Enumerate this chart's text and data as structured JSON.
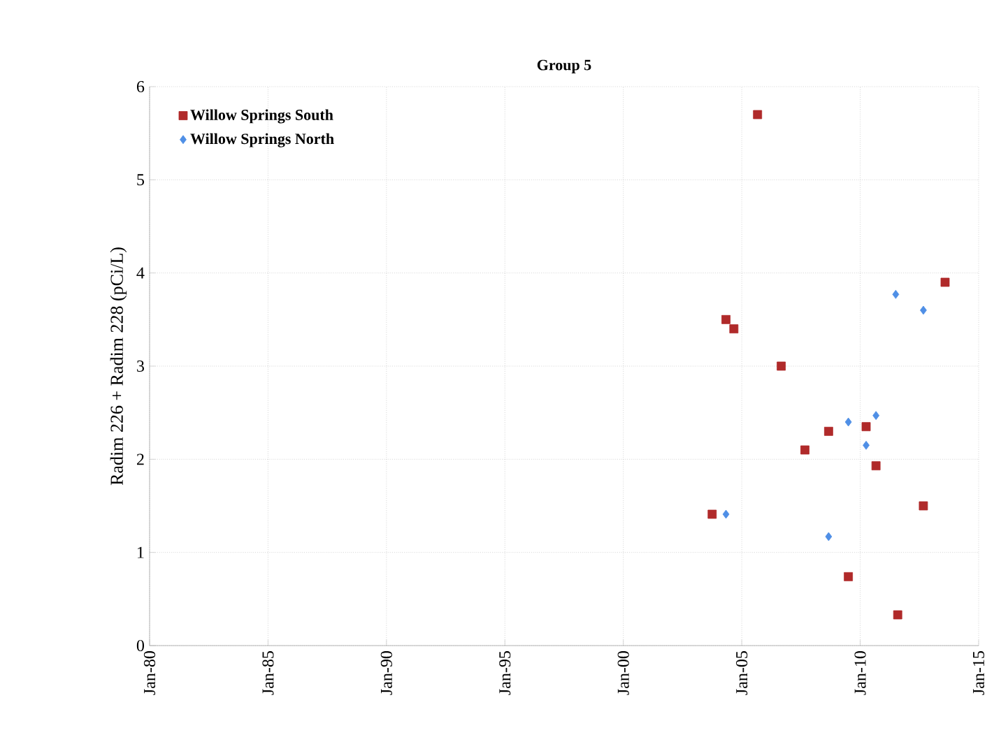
{
  "chart_data": {
    "type": "scatter",
    "title": "Group 5",
    "ylabel": "Radim 226 + Radim 228 (pCi/L)",
    "xlim": [
      "1980-01",
      "2015-01"
    ],
    "ylim": [
      0,
      6
    ],
    "xticks": [
      {
        "value": "1980-01",
        "label": "Jan-80"
      },
      {
        "value": "1985-01",
        "label": "Jan-85"
      },
      {
        "value": "1990-01",
        "label": "Jan-90"
      },
      {
        "value": "1995-01",
        "label": "Jan-95"
      },
      {
        "value": "2000-01",
        "label": "Jan-00"
      },
      {
        "value": "2005-01",
        "label": "Jan-05"
      },
      {
        "value": "2010-01",
        "label": "Jan-10"
      },
      {
        "value": "2015-01",
        "label": "Jan-15"
      }
    ],
    "yticks": [
      0,
      1,
      2,
      3,
      4,
      5,
      6
    ],
    "grid": true,
    "legend": "top left",
    "series": [
      {
        "name": "Willow Springs South",
        "color": "#b02a2a",
        "marker": "square",
        "x": [
          "2003-10",
          "2004-05",
          "2004-09",
          "2005-09",
          "2006-09",
          "2007-09",
          "2008-09",
          "2009-07",
          "2010-04",
          "2010-09",
          "2011-08",
          "2012-09",
          "2013-08"
        ],
        "values": [
          1.41,
          3.5,
          3.4,
          5.7,
          3.0,
          2.1,
          2.3,
          0.74,
          2.35,
          1.93,
          0.33,
          1.5,
          3.9
        ]
      },
      {
        "name": "Willow Springs North",
        "color": "#4f8fe6",
        "marker": "diamond",
        "x": [
          "2004-05",
          "2008-09",
          "2009-07",
          "2010-04",
          "2010-09",
          "2011-07",
          "2012-09"
        ],
        "values": [
          1.41,
          1.17,
          2.4,
          2.15,
          2.47,
          3.77,
          3.6
        ]
      }
    ]
  }
}
